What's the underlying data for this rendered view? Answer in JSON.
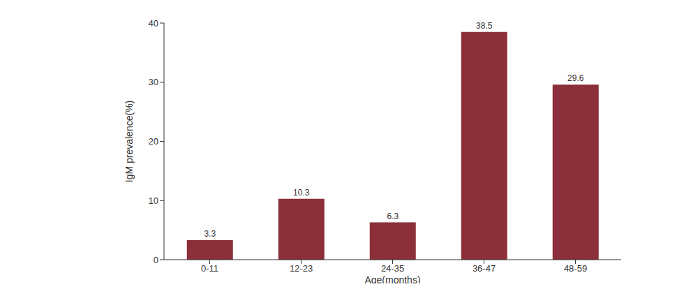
{
  "chart_data": {
    "type": "bar",
    "categories": [
      "0-11",
      "12-23",
      "24-35",
      "36-47",
      "48-59"
    ],
    "values": [
      3.3,
      10.3,
      6.3,
      38.5,
      29.6
    ],
    "color": "#8b2f3a",
    "x_label": "Age(months)",
    "y_label": "IgM prevalence(%)",
    "ylim": [
      0,
      40
    ],
    "yticks": [
      0,
      10,
      20,
      30,
      40
    ],
    "grid": false,
    "data_labels": true
  }
}
